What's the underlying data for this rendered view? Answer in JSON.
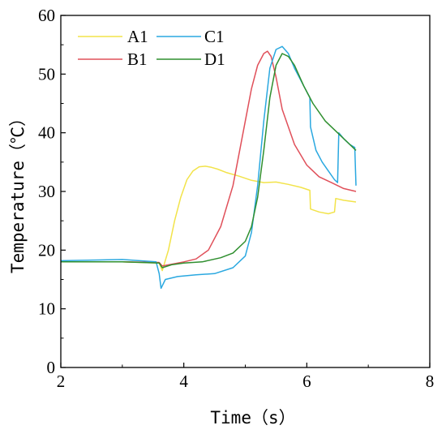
{
  "chart_data": {
    "type": "line",
    "title": "",
    "xlabel": "Time（s）",
    "ylabel": "Temperature（℃）",
    "xlim": [
      2,
      8
    ],
    "ylim": [
      0,
      60
    ],
    "xticks": [
      2,
      4,
      6,
      8
    ],
    "xtick_labels": [
      "2",
      "4",
      "6",
      "8"
    ],
    "yticks": [
      0,
      10,
      20,
      30,
      40,
      50,
      60
    ],
    "ytick_labels": [
      "0",
      "10",
      "20",
      "30",
      "40",
      "50",
      "60"
    ],
    "grid": false,
    "legend_position": "top-left",
    "series": [
      {
        "name": "A1",
        "color": "#f2e34a",
        "x": [
          2.0,
          3.0,
          3.6,
          3.65,
          3.75,
          3.85,
          3.95,
          4.05,
          4.15,
          4.25,
          4.35,
          4.45,
          4.55,
          4.7,
          4.9,
          5.1,
          5.3,
          5.5,
          5.7,
          5.9,
          6.05,
          6.06,
          6.2,
          6.35,
          6.45,
          6.47,
          6.6,
          6.8
        ],
        "y": [
          18.0,
          18.0,
          17.8,
          16.5,
          20.0,
          25.0,
          29.0,
          32.0,
          33.5,
          34.2,
          34.3,
          34.1,
          33.8,
          33.2,
          32.6,
          31.9,
          31.5,
          31.6,
          31.2,
          30.7,
          30.2,
          27.0,
          26.5,
          26.2,
          26.5,
          28.8,
          28.5,
          28.2
        ]
      },
      {
        "name": "B1",
        "color": "#e0505a",
        "x": [
          2.0,
          3.0,
          3.6,
          3.65,
          3.8,
          4.0,
          4.2,
          4.4,
          4.6,
          4.8,
          5.0,
          5.1,
          5.2,
          5.3,
          5.36,
          5.42,
          5.5,
          5.6,
          5.8,
          6.0,
          6.2,
          6.4,
          6.6,
          6.8
        ],
        "y": [
          18.0,
          18.0,
          17.9,
          17.3,
          17.6,
          18.0,
          18.5,
          20.0,
          24.0,
          31.0,
          42.0,
          47.5,
          51.5,
          53.5,
          53.9,
          53.0,
          49.5,
          44.0,
          38.0,
          34.5,
          32.5,
          31.5,
          30.5,
          30.0
        ]
      },
      {
        "name": "C1",
        "color": "#2aa8e0",
        "x": [
          2.0,
          3.0,
          3.55,
          3.6,
          3.63,
          3.7,
          3.9,
          4.2,
          4.5,
          4.8,
          5.0,
          5.1,
          5.2,
          5.3,
          5.4,
          5.5,
          5.6,
          5.7,
          5.8,
          5.95,
          6.05,
          6.06,
          6.15,
          6.25,
          6.35,
          6.45,
          6.5,
          6.52,
          6.6,
          6.7,
          6.78,
          6.8
        ],
        "y": [
          18.2,
          18.4,
          18.0,
          16.0,
          13.5,
          15.0,
          15.5,
          15.8,
          16.0,
          17.0,
          19.0,
          23.0,
          31.0,
          42.0,
          51.0,
          54.2,
          54.7,
          53.5,
          51.0,
          48.0,
          46.0,
          41.0,
          37.0,
          35.0,
          33.5,
          32.0,
          31.5,
          40.0,
          39.0,
          38.0,
          37.5,
          31.0
        ]
      },
      {
        "name": "D1",
        "color": "#2f8f2f",
        "x": [
          2.0,
          3.0,
          3.6,
          3.65,
          3.8,
          4.0,
          4.3,
          4.6,
          4.8,
          5.0,
          5.1,
          5.2,
          5.3,
          5.4,
          5.5,
          5.6,
          5.7,
          5.8,
          5.95,
          6.1,
          6.3,
          6.5,
          6.65,
          6.8
        ],
        "y": [
          18.0,
          18.0,
          17.8,
          17.0,
          17.5,
          17.8,
          18.0,
          18.7,
          19.5,
          21.5,
          24.0,
          29.0,
          37.0,
          46.0,
          51.5,
          53.5,
          53.0,
          51.5,
          48.0,
          45.0,
          42.0,
          40.0,
          38.5,
          37.0
        ]
      }
    ]
  }
}
